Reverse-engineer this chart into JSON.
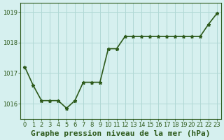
{
  "hours": [
    0,
    1,
    2,
    3,
    4,
    5,
    6,
    7,
    8,
    9,
    10,
    11,
    12,
    13,
    14,
    15,
    16,
    17,
    18,
    19,
    20,
    21,
    22,
    23
  ],
  "pressure": [
    1017.2,
    1016.6,
    1016.1,
    1016.1,
    1016.1,
    1015.85,
    1016.1,
    1016.7,
    1016.7,
    1016.7,
    1017.8,
    1017.8,
    1018.2,
    1018.2,
    1018.2,
    1018.2,
    1018.2,
    1018.2,
    1018.2,
    1018.2,
    1018.2,
    1018.2,
    1018.6,
    1018.95
  ],
  "line_color": "#2d5a1b",
  "marker": "*",
  "marker_size": 3.5,
  "bg_color": "#d6f0ef",
  "grid_color": "#b0d8d5",
  "xlabel": "Graphe pression niveau de la mer (hPa)",
  "ylabel": "",
  "ylim": [
    1015.5,
    1019.3
  ],
  "yticks": [
    1016,
    1017,
    1018,
    1019
  ],
  "xtick_labels": [
    "0",
    "1",
    "2",
    "3",
    "4",
    "5",
    "6",
    "7",
    "8",
    "9",
    "10",
    "11",
    "12",
    "13",
    "14",
    "15",
    "16",
    "17",
    "18",
    "19",
    "20",
    "21",
    "22",
    "23"
  ],
  "tick_fontsize": 6,
  "xlabel_fontsize": 8,
  "line_width": 1.2
}
